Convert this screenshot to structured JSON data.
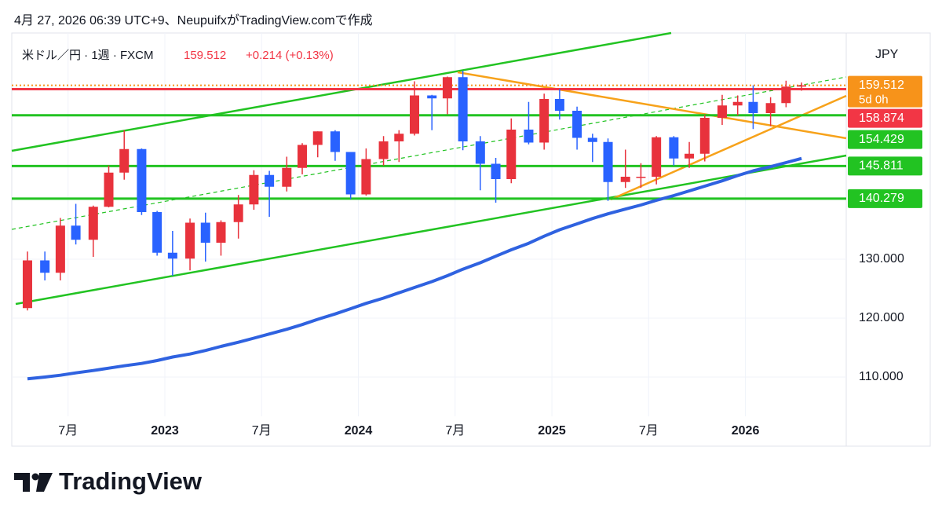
{
  "header": {
    "credit": "4月 27, 2026 06:39 UTC+9、NeupuifxがTradingView.comで作成"
  },
  "chart_data": {
    "type": "candlestick",
    "symbol": "米ドル／円 · 1週 · FXCM",
    "last": 159.512,
    "change_text": "+0.214 (+0.13%)",
    "currency": "JPY",
    "countdown": "5d 0h",
    "up_color": "#e8323c",
    "down_color": "#2962ff",
    "last_color": "#f7931a",
    "grid": true,
    "xlim": [
      2022.209,
      2026.521
    ],
    "xticks": [
      {
        "value": 2022.5,
        "label": "7月"
      },
      2023,
      {
        "value": 2023.5,
        "label": "7月"
      },
      2024,
      {
        "value": 2024.5,
        "label": "7月"
      },
      2025,
      {
        "value": 2025.5,
        "label": "7月"
      },
      2026
    ],
    "ylim": [
      103.33,
      168.4
    ],
    "yticks": [
      {
        "value": 110,
        "label": "110.000"
      },
      {
        "value": 120,
        "label": "120.000"
      },
      {
        "value": 130,
        "label": "130.000"
      }
    ],
    "x": [
      2022.29,
      2022.38,
      2022.46,
      2022.54,
      2022.63,
      2022.71,
      2022.79,
      2022.88,
      2022.96,
      2023.04,
      2023.13,
      2023.21,
      2023.29,
      2023.38,
      2023.46,
      2023.54,
      2023.63,
      2023.71,
      2023.79,
      2023.88,
      2023.96,
      2024.04,
      2024.13,
      2024.21,
      2024.29,
      2024.38,
      2024.46,
      2024.54,
      2024.63,
      2024.71,
      2024.79,
      2024.88,
      2024.96,
      2025.04,
      2025.13,
      2025.21,
      2025.29,
      2025.38,
      2025.46,
      2025.54,
      2025.63,
      2025.71,
      2025.79,
      2025.88,
      2025.96,
      2026.04,
      2026.13,
      2026.21,
      2026.29
    ],
    "open": [
      121.7,
      129.8,
      127.7,
      135.7,
      133.3,
      138.9,
      144.7,
      148.7,
      138.0,
      131.1,
      130.1,
      136.2,
      132.8,
      136.3,
      139.3,
      144.3,
      142.3,
      145.5,
      149.4,
      151.7,
      148.2,
      141.0,
      147.0,
      150.0,
      151.3,
      157.8,
      157.3,
      160.9,
      150.0,
      146.2,
      143.6,
      152.0,
      149.8,
      157.2,
      155.2,
      150.6,
      149.9,
      143.1,
      144.0,
      144.0,
      150.7,
      147.1,
      147.9,
      154.0,
      156.1,
      156.7,
      154.8,
      156.5,
      159.3
    ],
    "high": [
      131.3,
      131.3,
      137.0,
      139.4,
      139.1,
      145.9,
      151.9,
      148.8,
      138.2,
      134.8,
      136.9,
      137.9,
      136.6,
      140.9,
      145.1,
      145.0,
      147.4,
      149.7,
      151.7,
      151.9,
      148.2,
      148.8,
      150.9,
      151.9,
      160.2,
      157.9,
      161.0,
      162.0,
      150.9,
      147.2,
      153.9,
      156.7,
      158.1,
      158.9,
      155.9,
      151.3,
      150.5,
      148.6,
      146.3,
      150.9,
      150.9,
      149.9,
      154.5,
      157.9,
      157.8,
      159.5,
      157.5,
      160.3,
      160.0
    ],
    "low": [
      121.3,
      126.4,
      126.4,
      132.5,
      130.4,
      138.8,
      143.5,
      137.5,
      130.6,
      127.2,
      128.1,
      129.6,
      130.6,
      133.5,
      138.4,
      137.2,
      141.5,
      144.4,
      147.3,
      146.7,
      140.2,
      140.8,
      145.9,
      146.5,
      151.0,
      151.9,
      154.6,
      148.5,
      141.7,
      139.6,
      142.9,
      149.5,
      148.6,
      153.7,
      148.6,
      146.5,
      139.9,
      142.1,
      142.1,
      142.7,
      145.9,
      145.5,
      146.6,
      152.8,
      154.4,
      152.1,
      152.6,
      155.8,
      158.6
    ],
    "close": [
      129.8,
      127.7,
      135.7,
      133.3,
      138.9,
      144.7,
      148.7,
      138.0,
      131.1,
      130.1,
      136.2,
      132.8,
      136.3,
      139.3,
      144.3,
      142.3,
      145.5,
      149.4,
      151.7,
      148.2,
      141.0,
      147.0,
      150.0,
      151.3,
      157.8,
      157.3,
      160.9,
      150.0,
      146.2,
      143.6,
      152.0,
      149.8,
      157.2,
      155.2,
      150.6,
      149.9,
      143.1,
      144.0,
      144.0,
      150.7,
      147.1,
      147.9,
      154.0,
      156.1,
      156.7,
      154.8,
      156.5,
      159.3,
      159.512
    ],
    "ma": {
      "color": "#2f62e0",
      "values": [
        109.7,
        110.0,
        110.3,
        110.7,
        111.1,
        111.5,
        111.9,
        112.3,
        112.8,
        113.4,
        113.9,
        114.5,
        115.2,
        115.9,
        116.6,
        117.3,
        118.1,
        118.9,
        119.8,
        120.7,
        121.6,
        122.5,
        123.4,
        124.3,
        125.2,
        126.2,
        127.2,
        128.3,
        129.4,
        130.5,
        131.6,
        132.7,
        133.9,
        135.0,
        136.0,
        136.9,
        137.7,
        138.5,
        139.2,
        140.0,
        140.8,
        141.6,
        142.4,
        143.3,
        144.2,
        145.0,
        145.7,
        146.4,
        147.1
      ]
    },
    "levels": [
      {
        "value": 158.874,
        "color": "#f23645"
      },
      {
        "value": 154.429,
        "color": "#22c322"
      },
      {
        "value": 145.811,
        "color": "#22c322"
      },
      {
        "value": 140.279,
        "color": "#22c322"
      }
    ]
  },
  "footer": {
    "logo": "TradingView"
  }
}
